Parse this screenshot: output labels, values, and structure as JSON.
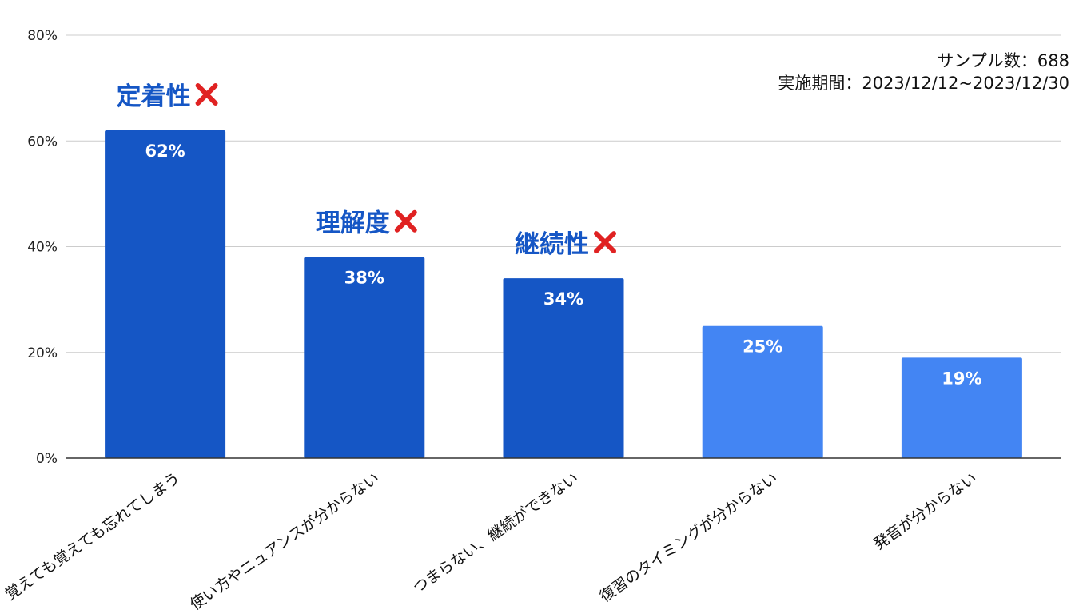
{
  "sample_info": {
    "sample_label": "サンプル数：688",
    "period_label": "実施期間：2023/12/12~2023/12/30"
  },
  "colors": {
    "highlight": "#1556c5",
    "normal": "#4385f3",
    "tag_text": "#1556c5",
    "cross": "#e02222",
    "grid": "#cccccc"
  },
  "chart_data": {
    "type": "bar",
    "categories": [
      "覚えても覚えても忘れてしまう",
      "使い方やニュアンスが分からない",
      "つまらない、継続ができない",
      "復習のタイミングが分からない",
      "発音が分からない"
    ],
    "values": [
      62,
      38,
      34,
      25,
      19
    ],
    "value_labels": [
      "62%",
      "38%",
      "34%",
      "25%",
      "19%"
    ],
    "highlighted": [
      true,
      true,
      true,
      false,
      false
    ],
    "annotations": [
      "定着性",
      "理解度",
      "継続性",
      "",
      ""
    ],
    "annotation_mark": "cross-icon",
    "ylim": [
      0,
      80
    ],
    "yticks": [
      0,
      20,
      40,
      60,
      80
    ],
    "ytick_labels": [
      "0%",
      "20%",
      "40%",
      "60%",
      "80%"
    ],
    "grid": true,
    "title": "",
    "xlabel": "",
    "ylabel": ""
  }
}
